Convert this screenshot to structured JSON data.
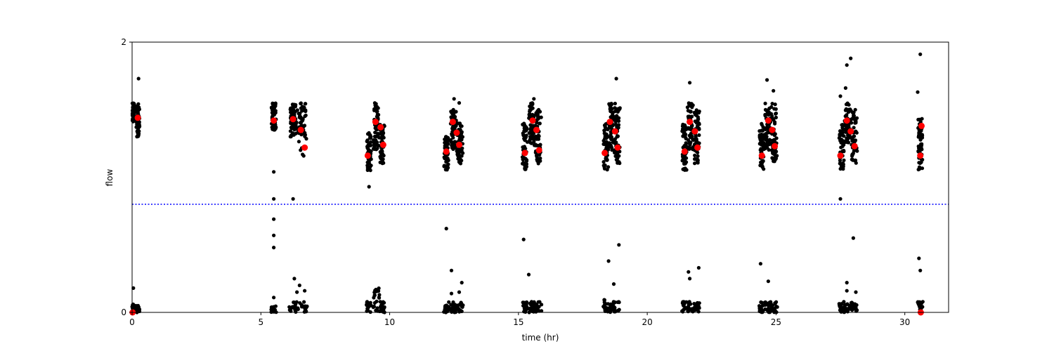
{
  "chart_data": {
    "type": "scatter",
    "title": "",
    "xlabel": "time (hr)",
    "ylabel": "flow",
    "xlim": [
      0,
      31.7
    ],
    "ylim": [
      0,
      2
    ],
    "x_ticks": [
      0,
      5,
      10,
      15,
      20,
      25,
      30
    ],
    "y_ticks": [
      0,
      2
    ],
    "grid": false,
    "threshold_line": {
      "y": 0.8,
      "color": "#0000ff",
      "style": "dotted"
    },
    "colors": {
      "observations": "#000000",
      "means": "#ff0000"
    },
    "observation_clusters": [
      {
        "x": [
          0.0,
          0.1
        ],
        "high": [
          1.4,
          1.55
        ],
        "low": [
          0.0,
          0.06
        ],
        "outliers": [
          [
            0.05,
            0.18
          ]
        ]
      },
      {
        "x": [
          0.15,
          0.3
        ],
        "high": [
          1.3,
          1.55
        ],
        "low": [
          0.0,
          0.05
        ],
        "outliers": [
          [
            0.25,
            1.73
          ]
        ]
      },
      {
        "x": [
          5.4,
          5.6
        ],
        "high": [
          1.35,
          1.55
        ],
        "low": [
          0.0,
          0.05
        ],
        "outliers": [
          [
            5.5,
            1.04
          ],
          [
            5.5,
            0.84
          ],
          [
            5.5,
            0.69
          ],
          [
            5.5,
            0.57
          ],
          [
            5.5,
            0.48
          ],
          [
            5.5,
            0.11
          ]
        ]
      },
      {
        "x": [
          6.1,
          6.4
        ],
        "high": [
          1.3,
          1.55
        ],
        "low": [
          0.0,
          0.08
        ],
        "outliers": [
          [
            6.25,
            0.84
          ],
          [
            6.3,
            0.25
          ],
          [
            6.4,
            0.15
          ]
        ]
      },
      {
        "x": [
          6.4,
          6.8
        ],
        "high": [
          1.15,
          1.55
        ],
        "low": [
          0.0,
          0.08
        ],
        "outliers": [
          [
            6.5,
            0.2
          ],
          [
            6.7,
            0.16
          ]
        ]
      },
      {
        "x": [
          9.1,
          9.3
        ],
        "high": [
          1.05,
          1.35
        ],
        "low": [
          0.0,
          0.08
        ],
        "outliers": [
          [
            9.2,
            0.93
          ]
        ]
      },
      {
        "x": [
          9.35,
          9.6
        ],
        "high": [
          1.2,
          1.55
        ],
        "low": [
          0.0,
          0.18
        ],
        "outliers": [
          [
            9.6,
            0.13
          ]
        ]
      },
      {
        "x": [
          9.6,
          9.8
        ],
        "high": [
          1.1,
          1.4
        ],
        "low": [
          0.0,
          0.08
        ],
        "outliers": []
      },
      {
        "x": [
          12.1,
          12.3
        ],
        "high": [
          1.05,
          1.3
        ],
        "low": [
          0.0,
          0.08
        ],
        "outliers": [
          [
            12.2,
            0.62
          ],
          [
            12.4,
            0.31
          ],
          [
            12.4,
            0.14
          ]
        ]
      },
      {
        "x": [
          12.35,
          12.6
        ],
        "high": [
          1.2,
          1.5
        ],
        "low": [
          0.0,
          0.08
        ],
        "outliers": [
          [
            12.5,
            1.58
          ]
        ]
      },
      {
        "x": [
          12.6,
          12.85
        ],
        "high": [
          1.1,
          1.4
        ],
        "low": [
          0.0,
          0.08
        ],
        "outliers": [
          [
            12.7,
            0.15
          ],
          [
            12.8,
            0.22
          ],
          [
            12.7,
            1.55
          ]
        ]
      },
      {
        "x": [
          15.15,
          15.35
        ],
        "high": [
          1.05,
          1.4
        ],
        "low": [
          0.0,
          0.08
        ],
        "outliers": [
          [
            15.2,
            0.54
          ],
          [
            15.4,
            0.28
          ]
        ]
      },
      {
        "x": [
          15.4,
          15.6
        ],
        "high": [
          1.25,
          1.55
        ],
        "low": [
          0.0,
          0.08
        ],
        "outliers": [
          [
            15.6,
            1.58
          ]
        ]
      },
      {
        "x": [
          15.6,
          15.9
        ],
        "high": [
          1.1,
          1.5
        ],
        "low": [
          0.0,
          0.08
        ],
        "outliers": []
      },
      {
        "x": [
          18.3,
          18.5
        ],
        "high": [
          1.05,
          1.4
        ],
        "low": [
          0.0,
          0.1
        ],
        "outliers": [
          [
            18.5,
            0.38
          ]
        ]
      },
      {
        "x": [
          18.5,
          18.7
        ],
        "high": [
          1.2,
          1.55
        ],
        "low": [
          0.0,
          0.08
        ],
        "outliers": [
          [
            18.7,
            0.21
          ]
        ]
      },
      {
        "x": [
          18.7,
          18.95
        ],
        "high": [
          1.1,
          1.55
        ],
        "low": [
          0.0,
          0.08
        ],
        "outliers": [
          [
            18.8,
            1.73
          ],
          [
            18.9,
            0.5
          ]
        ]
      },
      {
        "x": [
          21.35,
          21.55
        ],
        "high": [
          1.05,
          1.4
        ],
        "low": [
          0.0,
          0.08
        ],
        "outliers": [
          [
            21.6,
            0.3
          ],
          [
            21.65,
            0.25
          ]
        ]
      },
      {
        "x": [
          21.55,
          21.8
        ],
        "high": [
          1.2,
          1.55
        ],
        "low": [
          0.0,
          0.08
        ],
        "outliers": [
          [
            21.65,
            1.7
          ]
        ]
      },
      {
        "x": [
          21.8,
          22.05
        ],
        "high": [
          1.1,
          1.5
        ],
        "low": [
          0.0,
          0.08
        ],
        "outliers": [
          [
            22.0,
            0.33
          ]
        ]
      },
      {
        "x": [
          24.35,
          24.55
        ],
        "high": [
          1.05,
          1.4
        ],
        "low": [
          0.0,
          0.08
        ],
        "outliers": [
          [
            24.4,
            0.36
          ]
        ]
      },
      {
        "x": [
          24.55,
          24.8
        ],
        "high": [
          1.2,
          1.55
        ],
        "low": [
          0.0,
          0.08
        ],
        "outliers": [
          [
            24.7,
            0.23
          ],
          [
            24.65,
            1.72
          ]
        ]
      },
      {
        "x": [
          24.8,
          25.05
        ],
        "high": [
          1.1,
          1.55
        ],
        "low": [
          0.0,
          0.08
        ],
        "outliers": [
          [
            24.9,
            1.64
          ]
        ]
      },
      {
        "x": [
          27.45,
          27.65
        ],
        "high": [
          1.05,
          1.4
        ],
        "low": [
          0.0,
          0.08
        ],
        "outliers": [
          [
            27.5,
            1.6
          ],
          [
            27.5,
            0.84
          ]
        ]
      },
      {
        "x": [
          27.65,
          27.9
        ],
        "high": [
          1.25,
          1.55
        ],
        "low": [
          0.0,
          0.08
        ],
        "outliers": [
          [
            27.7,
            1.66
          ],
          [
            27.75,
            1.83
          ],
          [
            27.75,
            0.22
          ],
          [
            27.75,
            0.16
          ]
        ]
      },
      {
        "x": [
          27.9,
          28.15
        ],
        "high": [
          1.1,
          1.5
        ],
        "low": [
          0.0,
          0.08
        ],
        "outliers": [
          [
            27.9,
            1.88
          ],
          [
            28.0,
            0.55
          ],
          [
            28.1,
            0.15
          ]
        ]
      },
      {
        "x": [
          30.5,
          30.7
        ],
        "high": [
          1.05,
          1.45
        ],
        "low": [
          0.0,
          0.08
        ],
        "outliers": [
          [
            30.5,
            1.63
          ],
          [
            30.55,
            0.4
          ],
          [
            30.6,
            0.31
          ],
          [
            30.6,
            1.91
          ]
        ]
      }
    ],
    "means": [
      {
        "x": 0.02,
        "y": 0.0
      },
      {
        "x": 0.22,
        "y": 1.44
      },
      {
        "x": 5.5,
        "y": 1.42
      },
      {
        "x": 6.25,
        "y": 1.43
      },
      {
        "x": 6.55,
        "y": 1.35
      },
      {
        "x": 6.7,
        "y": 1.22
      },
      {
        "x": 9.15,
        "y": 1.16
      },
      {
        "x": 9.45,
        "y": 1.41
      },
      {
        "x": 9.65,
        "y": 1.37
      },
      {
        "x": 9.75,
        "y": 1.24
      },
      {
        "x": 12.2,
        "y": 1.19
      },
      {
        "x": 12.45,
        "y": 1.41
      },
      {
        "x": 12.6,
        "y": 1.33
      },
      {
        "x": 12.7,
        "y": 1.24
      },
      {
        "x": 15.25,
        "y": 1.18
      },
      {
        "x": 15.55,
        "y": 1.42
      },
      {
        "x": 15.7,
        "y": 1.35
      },
      {
        "x": 15.8,
        "y": 1.2
      },
      {
        "x": 18.35,
        "y": 1.18
      },
      {
        "x": 18.55,
        "y": 1.41
      },
      {
        "x": 18.75,
        "y": 1.34
      },
      {
        "x": 18.85,
        "y": 1.22
      },
      {
        "x": 21.45,
        "y": 1.19
      },
      {
        "x": 21.65,
        "y": 1.41
      },
      {
        "x": 21.85,
        "y": 1.34
      },
      {
        "x": 21.95,
        "y": 1.22
      },
      {
        "x": 24.45,
        "y": 1.16
      },
      {
        "x": 24.7,
        "y": 1.42
      },
      {
        "x": 24.85,
        "y": 1.35
      },
      {
        "x": 24.95,
        "y": 1.23
      },
      {
        "x": 27.5,
        "y": 1.16
      },
      {
        "x": 27.75,
        "y": 1.42
      },
      {
        "x": 27.9,
        "y": 1.34
      },
      {
        "x": 28.05,
        "y": 1.23
      },
      {
        "x": 30.6,
        "y": 1.16
      },
      {
        "x": 30.65,
        "y": 1.38
      },
      {
        "x": 30.62,
        "y": 0.0
      }
    ]
  }
}
